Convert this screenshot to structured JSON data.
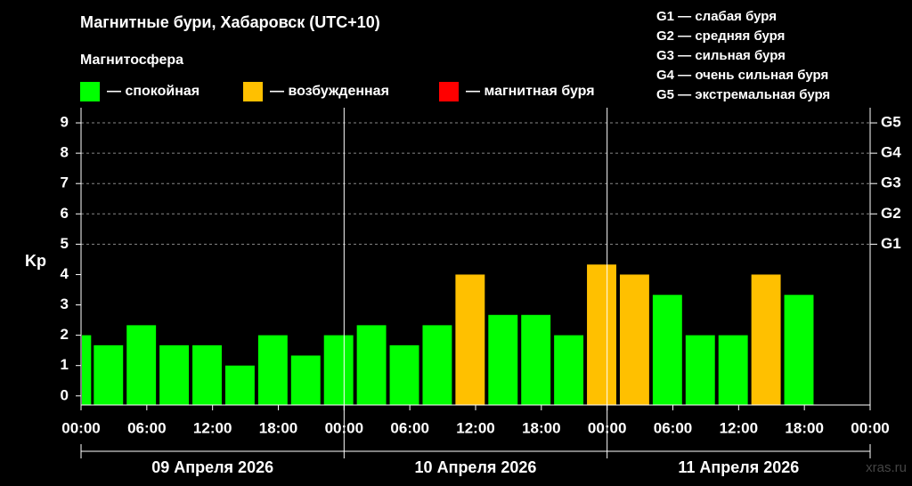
{
  "chart_data": {
    "type": "histogram",
    "title": "Магнитные бури, Хабаровск (UTC+10)",
    "legend_title": "Магнитосфера",
    "legend": [
      {
        "label": "— спокойная",
        "color": "#00ff00"
      },
      {
        "label": "— возбужденная",
        "color": "#ffc000"
      },
      {
        "label": "— магнитная буря",
        "color": "#ff0000"
      }
    ],
    "scale_notes": [
      "G1 — слабая буря",
      "G2 — средняя буря",
      "G3 — сильная буря",
      "G4 — очень сильная буря",
      "G5 — экстремальная буря"
    ],
    "y_label": "Kp",
    "bins": [
      0,
      1,
      4,
      7,
      10,
      13,
      16,
      19,
      22,
      25,
      28,
      31,
      34,
      37,
      40,
      43,
      46,
      49,
      52,
      55,
      58,
      61,
      64,
      67
    ],
    "values": [
      2,
      1.67,
      2.33,
      1.67,
      1.67,
      1,
      2,
      1.33,
      2,
      2.33,
      1.67,
      2.33,
      4,
      2.67,
      2.67,
      2,
      4.33,
      4,
      3.33,
      2,
      2,
      4,
      3.33
    ],
    "colors": [
      "#00ff00",
      "#00ff00",
      "#00ff00",
      "#00ff00",
      "#00ff00",
      "#00ff00",
      "#00ff00",
      "#00ff00",
      "#00ff00",
      "#00ff00",
      "#00ff00",
      "#00ff00",
      "#ffc000",
      "#00ff00",
      "#00ff00",
      "#00ff00",
      "#ffc000",
      "#ffc000",
      "#00ff00",
      "#00ff00",
      "#00ff00",
      "#ffc000",
      "#00ff00"
    ],
    "xlim": [
      0,
      72
    ],
    "xticks": [
      {
        "value": 0,
        "label": "00:00"
      },
      {
        "value": 6,
        "label": "06:00"
      },
      {
        "value": 12,
        "label": "12:00"
      },
      {
        "value": 18,
        "label": "18:00"
      },
      {
        "value": 24,
        "label": "00:00"
      },
      {
        "value": 30,
        "label": "06:00"
      },
      {
        "value": 36,
        "label": "12:00"
      },
      {
        "value": 42,
        "label": "18:00"
      },
      {
        "value": 48,
        "label": "00:00"
      },
      {
        "value": 54,
        "label": "06:00"
      },
      {
        "value": 60,
        "label": "12:00"
      },
      {
        "value": 66,
        "label": "18:00"
      },
      {
        "value": 72,
        "label": "00:00"
      }
    ],
    "days": [
      "09 Апреля 2026",
      "10 Апреля 2026",
      "11 Апреля 2026"
    ],
    "ylim": [
      -0.3,
      9.5
    ],
    "yticks": [
      0,
      1,
      2,
      3,
      4,
      5,
      6,
      7,
      8,
      9
    ],
    "y2lim": [
      -0.3,
      9.5
    ],
    "y2ticks": [
      {
        "value": 5,
        "label": "G1"
      },
      {
        "value": 6,
        "label": "G2"
      },
      {
        "value": 7,
        "label": "G3"
      },
      {
        "value": 8,
        "label": "G4"
      },
      {
        "value": 9,
        "label": "G5"
      }
    ],
    "grid": "y2",
    "watermark": "xras.ru"
  }
}
